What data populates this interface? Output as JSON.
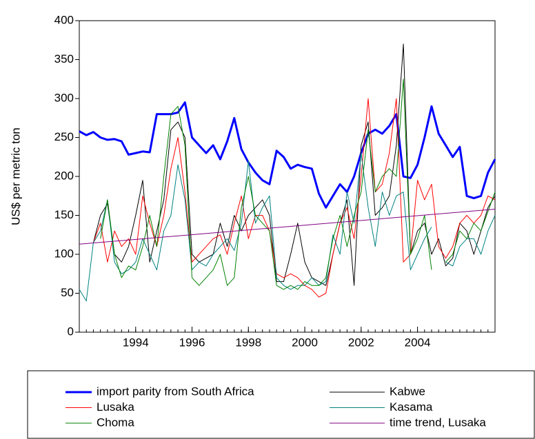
{
  "chart_data": {
    "type": "line",
    "ylabel": "US$ per metric ton",
    "xlim": [
      1992,
      2006.75
    ],
    "xticks": [
      1994,
      1996,
      1998,
      2000,
      2002,
      2004
    ],
    "ylim": [
      0,
      400
    ],
    "yticks": [
      0,
      50,
      100,
      150,
      200,
      250,
      300,
      350,
      400
    ],
    "grid": false,
    "x": [
      1992,
      1992.25,
      1992.5,
      1992.75,
      1993,
      1993.25,
      1993.5,
      1993.75,
      1994,
      1994.25,
      1994.5,
      1994.75,
      1995,
      1995.25,
      1995.5,
      1995.75,
      1996,
      1996.25,
      1996.5,
      1996.75,
      1997,
      1997.25,
      1997.5,
      1997.75,
      1998,
      1998.25,
      1998.5,
      1998.75,
      1999,
      1999.25,
      1999.5,
      1999.75,
      2000,
      2000.25,
      2000.5,
      2000.75,
      2001,
      2001.25,
      2001.5,
      2001.75,
      2002,
      2002.25,
      2002.5,
      2002.75,
      2003,
      2003.25,
      2003.5,
      2003.75,
      2004,
      2004.25,
      2004.5,
      2004.75,
      2005,
      2005.25,
      2005.5,
      2005.75,
      2006,
      2006.25,
      2006.5,
      2006.75
    ],
    "series": [
      {
        "name": "import parity from South Africa",
        "color": "#0000ff",
        "width": 3,
        "values": [
          258,
          253,
          257,
          250,
          247,
          248,
          245,
          228,
          230,
          232,
          231,
          280,
          280,
          280,
          282,
          295,
          250,
          240,
          230,
          240,
          222,
          245,
          275,
          235,
          218,
          205,
          195,
          190,
          233,
          225,
          210,
          215,
          212,
          210,
          178,
          160,
          175,
          190,
          180,
          200,
          230,
          255,
          260,
          255,
          265,
          280,
          200,
          198,
          215,
          250,
          290,
          255,
          240,
          225,
          238,
          175,
          172,
          175,
          205,
          222
        ]
      },
      {
        "name": "Kabwe",
        "color": "#000000",
        "width": 1,
        "values": [
          null,
          null,
          115,
          150,
          165,
          100,
          90,
          110,
          150,
          195,
          90,
          130,
          170,
          260,
          270,
          250,
          100,
          90,
          95,
          100,
          140,
          110,
          150,
          130,
          150,
          160,
          170,
          150,
          65,
          65,
          100,
          140,
          90,
          70,
          65,
          60,
          100,
          140,
          170,
          60,
          240,
          270,
          150,
          160,
          175,
          240,
          370,
          100,
          130,
          140,
          100,
          120,
          85,
          95,
          140,
          130,
          100,
          130,
          160,
          175
        ]
      },
      {
        "name": "Lusaka",
        "color": "#ff0000",
        "width": 1,
        "values": [
          null,
          null,
          115,
          140,
          90,
          130,
          110,
          120,
          100,
          175,
          140,
          110,
          150,
          210,
          250,
          180,
          90,
          100,
          110,
          120,
          125,
          100,
          140,
          175,
          120,
          150,
          150,
          130,
          75,
          70,
          75,
          70,
          60,
          55,
          45,
          50,
          100,
          140,
          160,
          120,
          200,
          300,
          180,
          190,
          230,
          300,
          90,
          100,
          195,
          170,
          190,
          110,
          95,
          110,
          140,
          150,
          140,
          150,
          175,
          170
        ]
      },
      {
        "name": "Kasama",
        "color": "#008080",
        "width": 1,
        "values": [
          55,
          40,
          115,
          130,
          170,
          90,
          75,
          80,
          90,
          120,
          100,
          80,
          130,
          150,
          215,
          170,
          80,
          90,
          85,
          100,
          110,
          120,
          105,
          140,
          220,
          140,
          160,
          175,
          70,
          60,
          55,
          60,
          60,
          70,
          60,
          65,
          125,
          100,
          180,
          140,
          230,
          160,
          110,
          180,
          150,
          175,
          180,
          80,
          100,
          120,
          135,
          null,
          90,
          85,
          110,
          120,
          120,
          100,
          130,
          150
        ]
      },
      {
        "name": "Choma",
        "color": "#008000",
        "width": 1,
        "values": [
          null,
          null,
          null,
          120,
          170,
          100,
          70,
          85,
          80,
          110,
          150,
          110,
          200,
          280,
          290,
          240,
          70,
          60,
          70,
          80,
          100,
          60,
          70,
          160,
          200,
          150,
          140,
          130,
          60,
          55,
          60,
          55,
          65,
          60,
          60,
          70,
          120,
          150,
          110,
          150,
          180,
          260,
          180,
          200,
          210,
          200,
          325,
          100,
          120,
          150,
          80,
          null,
          90,
          100,
          130,
          120,
          140,
          130,
          155,
          180
        ]
      },
      {
        "name": "time trend, Lusaka",
        "color": "#800080",
        "width": 1,
        "x": [
          1992,
          2006.75
        ],
        "values": [
          113,
          158
        ]
      }
    ]
  }
}
